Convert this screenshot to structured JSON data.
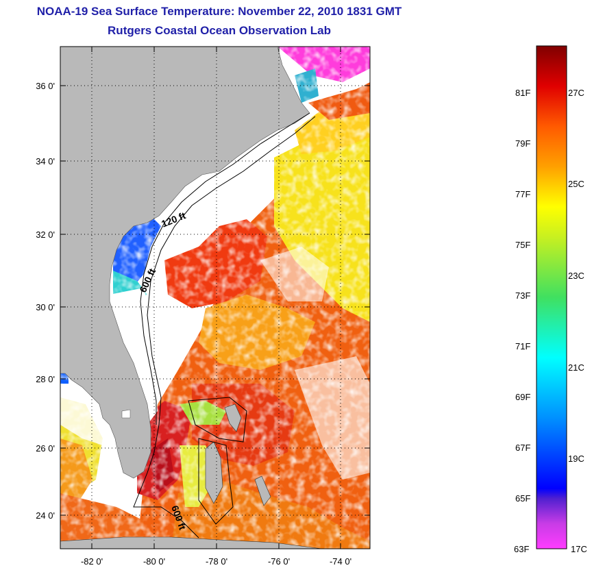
{
  "title": "NOAA-19 Sea Surface Temperature:  November 22, 2010 1831 GMT",
  "subtitle": "Rutgers Coastal Ocean Observation Lab",
  "map": {
    "x_ticks": [
      "-82 0'",
      "-80 0'",
      "-78 0'",
      "-76 0'",
      "-74 0'"
    ],
    "y_ticks": [
      "36 0'",
      "34 0'",
      "32 0'",
      "30 0'",
      "28 0'",
      "26 0'",
      "24 0'"
    ],
    "lon_range": [
      -83,
      -73
    ],
    "lat_range": [
      23,
      37
    ],
    "gridlines": true,
    "contour_labels": [
      "120 ft",
      "600 ft",
      "600 ft"
    ],
    "land_color": "#b9b9b9",
    "cloud_color": "#ffffff"
  },
  "colorbar": {
    "fahrenheit_labels": [
      "81F",
      "79F",
      "77F",
      "75F",
      "73F",
      "71F",
      "69F",
      "67F",
      "65F",
      "63F"
    ],
    "celsius_labels": [
      "27C",
      "25C",
      "23C",
      "21C",
      "19C",
      "17C"
    ],
    "range_f": [
      63,
      83
    ],
    "range_c": [
      17,
      28
    ]
  }
}
